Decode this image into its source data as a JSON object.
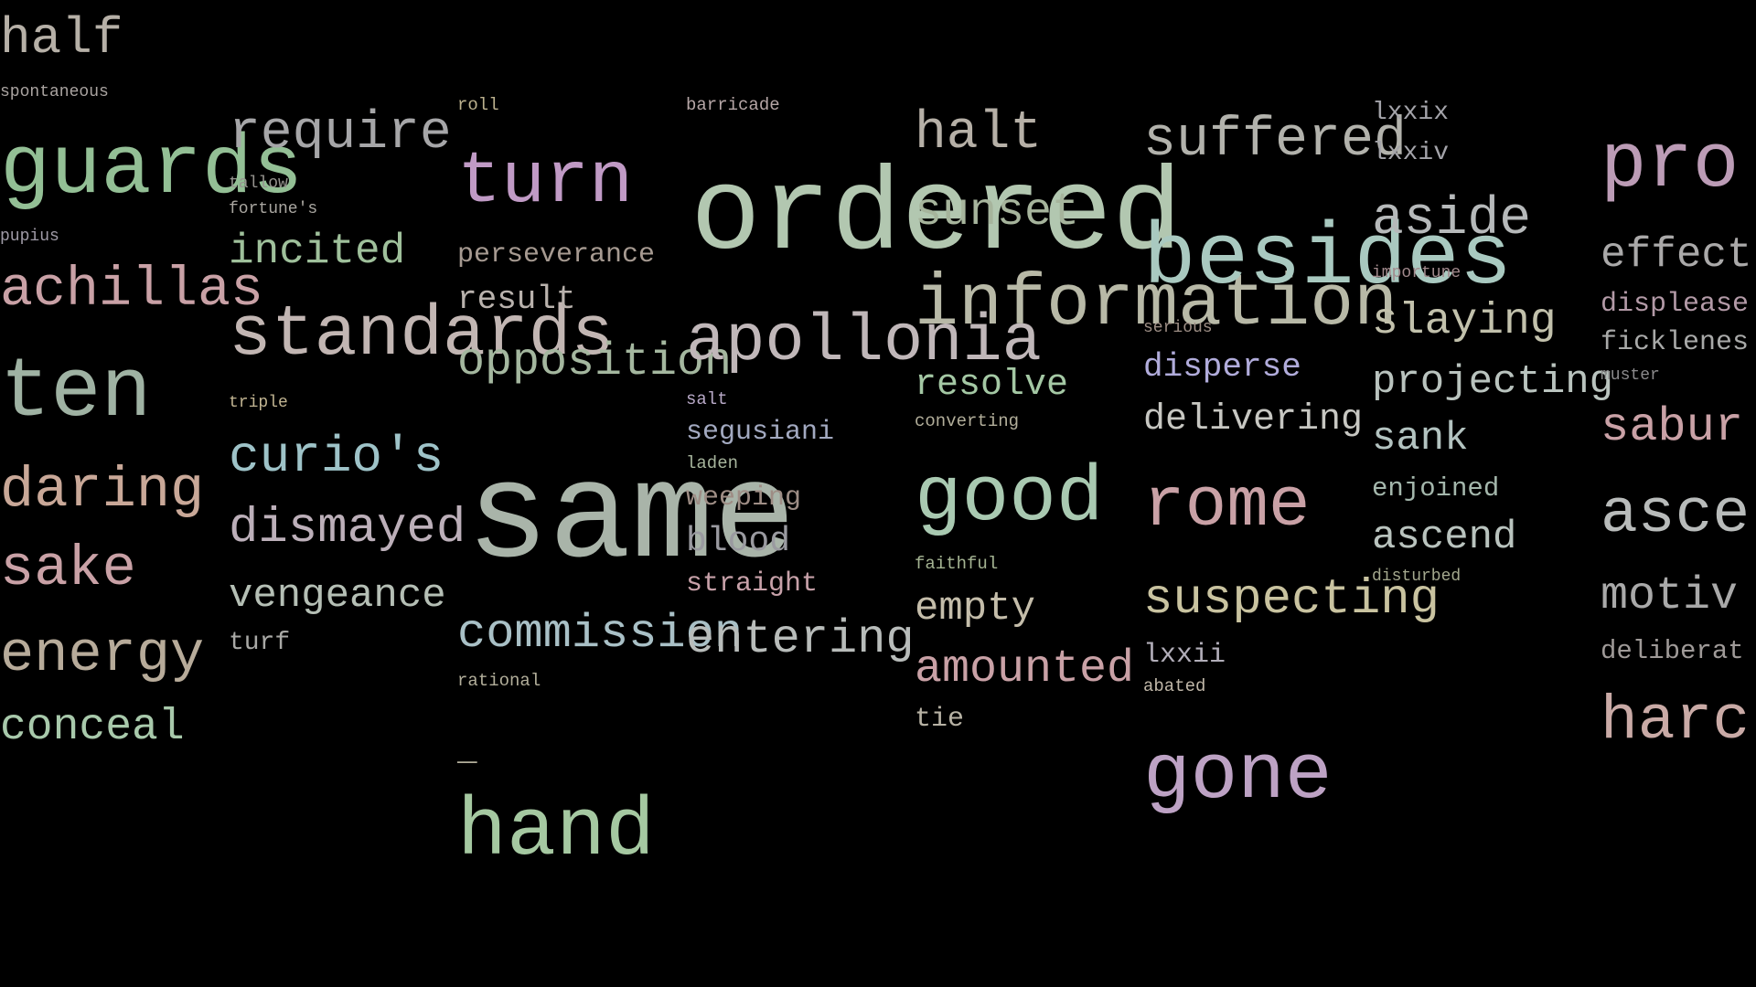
{
  "words": [
    {
      "text": "half",
      "color": "#b6b0a7"
    },
    {
      "text": "spontaneous",
      "color": "#a9a3a0"
    },
    {
      "text": "guards",
      "color": "#93bf95"
    },
    {
      "text": "pupius",
      "color": "#9f9aa6"
    },
    {
      "text": "achillas",
      "color": "#c9a1a6"
    },
    {
      "text": "ten",
      "color": "#9fb2a3"
    },
    {
      "text": "daring",
      "color": "#c9a898"
    },
    {
      "text": "sake",
      "color": "#c9a1a6"
    },
    {
      "text": "energy",
      "color": "#b7ab9a"
    },
    {
      "text": "conceal",
      "color": "#a8c9ab"
    },
    {
      "text": "require",
      "color": "#a6a6a8"
    },
    {
      "text": "tallow",
      "color": "#96948f"
    },
    {
      "text": "fortune's",
      "color": "#a9a6a0"
    },
    {
      "text": "incited",
      "color": "#9fc09b"
    },
    {
      "text": "standards",
      "color": "#c2b6b3"
    },
    {
      "text": "triple",
      "color": "#c2b592"
    },
    {
      "text": "curio's",
      "color": "#9ec3c8"
    },
    {
      "text": "dismayed",
      "color": "#bcafb9"
    },
    {
      "text": "vengeance",
      "color": "#b5bfb5"
    },
    {
      "text": "turf",
      "color": "#a9a9a6"
    },
    {
      "text": "roll",
      "color": "#bcb18e"
    },
    {
      "text": "turn",
      "color": "#c09ac5"
    },
    {
      "text": "perseverance",
      "color": "#a69a91"
    },
    {
      "text": "result",
      "color": "#b9b2ad"
    },
    {
      "text": "opposition",
      "color": "#a4b79f"
    },
    {
      "text": "commission",
      "color": "#a9c0c6"
    },
    {
      "text": "rational",
      "color": "#b2ae9a"
    },
    {
      "text": "_",
      "color": "#b2ae9a"
    },
    {
      "text": "hand",
      "color": "#a5c8a1"
    },
    {
      "text": "barricade",
      "color": "#b6a6a6"
    },
    {
      "text": "apollonia",
      "color": "#c0b7b9"
    },
    {
      "text": "salt",
      "color": "#b8a9c7"
    },
    {
      "text": "segusiani",
      "color": "#a2a9c0"
    },
    {
      "text": "laden",
      "color": "#a6b49c"
    },
    {
      "text": "same",
      "color": "#a9b4a9"
    },
    {
      "text": "weeping",
      "color": "#9e8d85"
    },
    {
      "text": "blood",
      "color": "#9a9aa0"
    },
    {
      "text": "straight",
      "color": "#c7a1a9"
    },
    {
      "text": "entering",
      "color": "#b8bcba"
    },
    {
      "text": "halt",
      "color": "#b6b0a7"
    },
    {
      "text": "ordered",
      "color": "#b2c7b0"
    },
    {
      "text": "sunset",
      "color": "#a6b49c"
    },
    {
      "text": "information",
      "color": "#b8b9a7"
    },
    {
      "text": "resolve",
      "color": "#a4c8a4"
    },
    {
      "text": "converting",
      "color": "#b2ae9a"
    },
    {
      "text": "good",
      "color": "#a9c9b1"
    },
    {
      "text": "faithful",
      "color": "#a4b392"
    },
    {
      "text": "empty",
      "color": "#c4bdaa"
    },
    {
      "text": "amounted",
      "color": "#c9a1a6"
    },
    {
      "text": "tie",
      "color": "#b7b2a4"
    },
    {
      "text": "suffered",
      "color": "#b2b2ac"
    },
    {
      "text": "besides",
      "color": "#a9c9c0"
    },
    {
      "text": "serious",
      "color": "#9d8e85"
    },
    {
      "text": "disperse",
      "color": "#b1acdb"
    },
    {
      "text": "delivering",
      "color": "#c7c7c2"
    },
    {
      "text": "rome",
      "color": "#c9a1a6"
    },
    {
      "text": "suspecting",
      "color": "#c9c3a0"
    },
    {
      "text": "lxxii",
      "color": "#b2aeb9"
    },
    {
      "text": "abated",
      "color": "#c0b7a8"
    },
    {
      "text": "gone",
      "color": "#bda2c4"
    },
    {
      "text": "lxxix",
      "color": "#a3a3a9"
    },
    {
      "text": "lxxiv",
      "color": "#a3a3a9"
    },
    {
      "text": "aside",
      "color": "#b6b9ba"
    },
    {
      "text": "importune",
      "color": "#a1898c"
    },
    {
      "text": "slaying",
      "color": "#c2c1ac"
    },
    {
      "text": "projecting",
      "color": "#b9c3be"
    },
    {
      "text": "sank",
      "color": "#b3c3c0"
    },
    {
      "text": "enjoined",
      "color": "#a4b7ac"
    },
    {
      "text": "ascend",
      "color": "#b9c3be"
    },
    {
      "text": "disturbed",
      "color": "#a4a88e"
    },
    {
      "text": "pro",
      "color": "#bc9cb6"
    },
    {
      "text": "effect",
      "color": "#aaa9a9"
    },
    {
      "text": "displease",
      "color": "#b39aa7"
    },
    {
      "text": "ficklenes",
      "color": "#a8a9a8"
    },
    {
      "text": "muster",
      "color": "#8b8a8c"
    },
    {
      "text": "sabur",
      "color": "#c9a1a6"
    },
    {
      "text": "asce",
      "color": "#b8bbba"
    },
    {
      "text": "motiv",
      "color": "#a9a9a9"
    },
    {
      "text": "deliberat",
      "color": "#9f9a98"
    },
    {
      "text": "harc",
      "color": "#c9aaa6"
    }
  ]
}
